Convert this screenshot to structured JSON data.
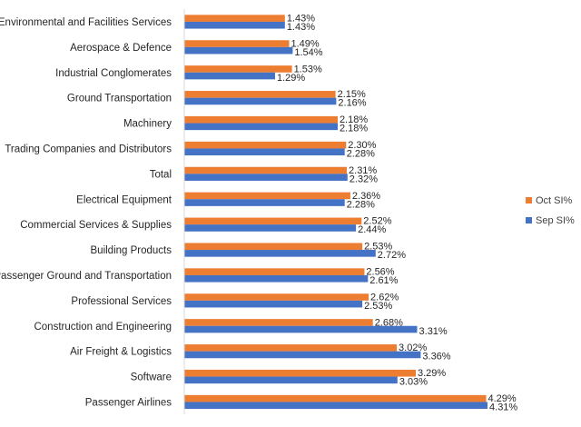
{
  "chart_data": {
    "type": "bar",
    "orientation": "horizontal",
    "title": "",
    "xlabel": "",
    "ylabel": "",
    "xlim": [
      0,
      4.5
    ],
    "grid": false,
    "legend_position": "right",
    "categories": [
      "Environmental and Facilities Services",
      "Aerospace & Defence",
      "Industrial Conglomerates",
      "Ground Transportation",
      "Machinery",
      "Trading Companies and Distributors",
      "Total",
      "Electrical Equipment",
      "Commercial Services & Supplies",
      "Building Products",
      "Passenger Ground and Transportation",
      "Professional Services",
      "Construction and Engineering",
      "Air Freight & Logistics",
      "Software",
      "Passenger Airlines"
    ],
    "series": [
      {
        "name": "Oct SI%",
        "color": "#ED7D31",
        "values": [
          1.43,
          1.49,
          1.53,
          2.15,
          2.18,
          2.3,
          2.31,
          2.36,
          2.52,
          2.53,
          2.56,
          2.62,
          2.68,
          3.02,
          3.29,
          4.29
        ],
        "labels": [
          "1.43%",
          "1.49%",
          "1.53%",
          "2.15%",
          "2.18%",
          "2.30%",
          "2.31%",
          "2.36%",
          "2.52%",
          "2.53%",
          "2.56%",
          "2.62%",
          "2.68%",
          "3.02%",
          "3.29%",
          "4.29%"
        ]
      },
      {
        "name": "Sep SI%",
        "color": "#4472C4",
        "values": [
          1.43,
          1.54,
          1.29,
          2.16,
          2.18,
          2.28,
          2.32,
          2.28,
          2.44,
          2.72,
          2.61,
          2.53,
          3.31,
          3.36,
          3.03,
          4.31
        ],
        "labels": [
          "1.43%",
          "1.54%",
          "1.29%",
          "2.16%",
          "2.18%",
          "2.28%",
          "2.32%",
          "2.28%",
          "2.44%",
          "2.72%",
          "2.61%",
          "2.53%",
          "3.31%",
          "3.36%",
          "3.03%",
          "4.31%"
        ]
      }
    ]
  }
}
